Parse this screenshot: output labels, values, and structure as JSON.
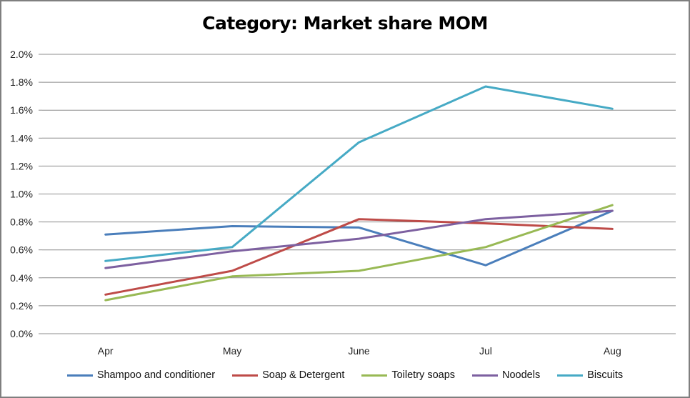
{
  "chart_data": {
    "type": "line",
    "title": "Category: Market share MOM",
    "xlabel": "",
    "ylabel": "",
    "categories": [
      "Apr",
      "May",
      "June",
      "Jul",
      "Aug"
    ],
    "ylim": [
      0,
      2.0
    ],
    "yticks": [
      "0.0%",
      "0.2%",
      "0.4%",
      "0.6%",
      "0.8%",
      "1.0%",
      "1.2%",
      "1.4%",
      "1.6%",
      "1.8%",
      "2.0%"
    ],
    "grid": true,
    "legend_position": "bottom",
    "series": [
      {
        "name": "Shampoo and conditioner",
        "color": "#4a7ebb",
        "values": [
          0.71,
          0.77,
          0.76,
          0.49,
          0.88
        ]
      },
      {
        "name": "Soap & Detergent",
        "color": "#be4b48",
        "values": [
          0.28,
          0.45,
          0.82,
          0.79,
          0.75
        ]
      },
      {
        "name": "Toiletry soaps",
        "color": "#98b954",
        "values": [
          0.24,
          0.41,
          0.45,
          0.62,
          0.92
        ]
      },
      {
        "name": "Noodels",
        "color": "#7d60a0",
        "values": [
          0.47,
          0.59,
          0.68,
          0.82,
          0.88
        ]
      },
      {
        "name": "Biscuits",
        "color": "#46aac5",
        "values": [
          0.52,
          0.62,
          1.37,
          1.77,
          1.61
        ]
      }
    ]
  }
}
